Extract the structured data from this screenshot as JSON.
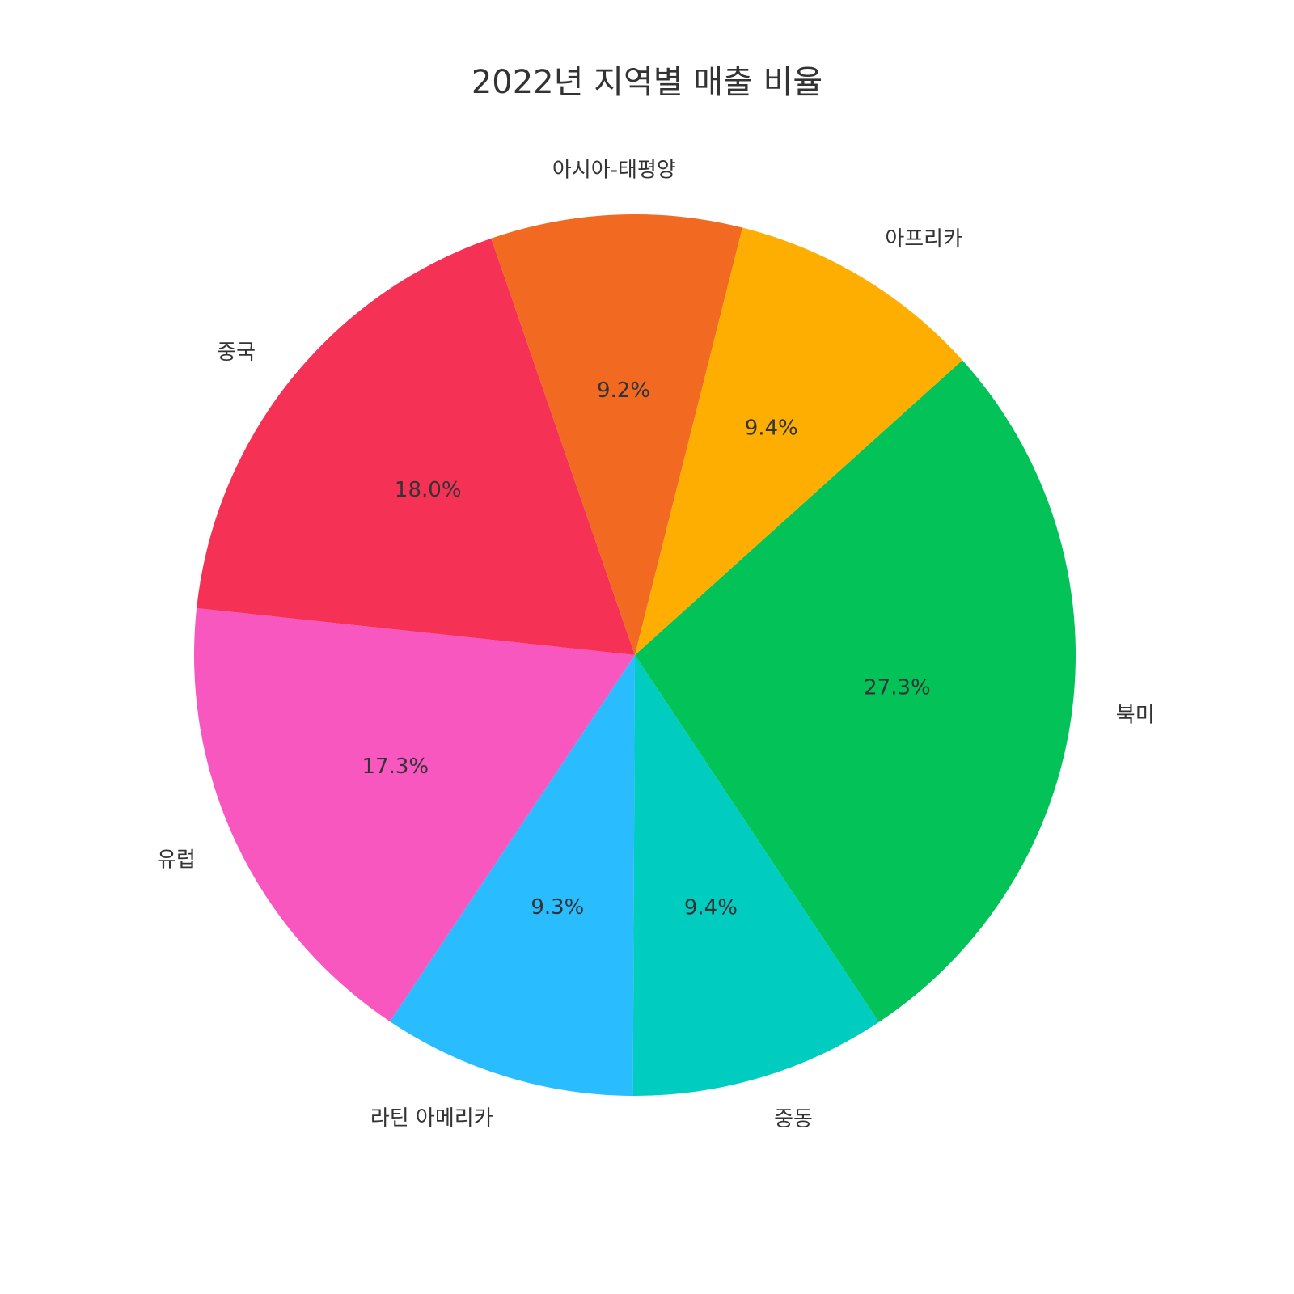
{
  "chart_data": {
    "type": "pie",
    "title": "2022년 지역별 매출 비율",
    "labels": [
      "북미",
      "중동",
      "라틴 아메리카",
      "유럽",
      "중국",
      "아시아-태평양",
      "아프리카"
    ],
    "values": [
      27.3,
      9.4,
      9.3,
      17.3,
      18.0,
      9.2,
      9.4
    ],
    "percent_labels": [
      "27.3%",
      "9.4%",
      "9.3%",
      "17.3%",
      "18.0%",
      "9.2%",
      "9.4%"
    ],
    "colors": [
      "#02C258",
      "#00CCC0",
      "#29BCFE",
      "#F857C0",
      "#F53256",
      "#F26A22",
      "#FEAE00"
    ],
    "start_angle_deg": -42,
    "direction": "clockwise",
    "legend": "none"
  }
}
